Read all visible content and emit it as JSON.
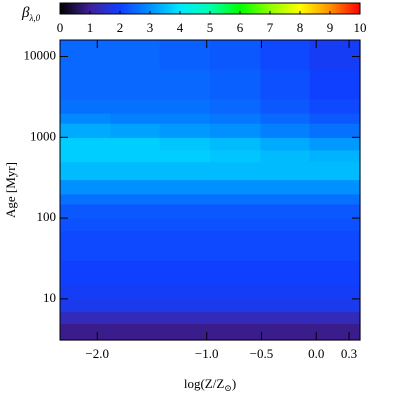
{
  "chart_data": {
    "type": "heatmap",
    "colorbar_label": "β",
    "colorbar_label_subscript": "λ,0",
    "y_label": "Age [Myr]",
    "x_label": "log(Z/Z",
    "x_label_subscript": "⊙",
    "x_label_end": ")",
    "colorbar_lim": [
      0,
      10
    ],
    "colorbar_ticks": [
      0,
      1,
      2,
      3,
      4,
      5,
      6,
      7,
      8,
      9,
      10
    ],
    "colormap": [
      [
        0,
        "#000000"
      ],
      [
        1,
        "#40209a"
      ],
      [
        2,
        "#1040ff"
      ],
      [
        3,
        "#0090ff"
      ],
      [
        4,
        "#00e8ff"
      ],
      [
        5,
        "#00ffb0"
      ],
      [
        6,
        "#00ff00"
      ],
      [
        7,
        "#90ff00"
      ],
      [
        8,
        "#ffff00"
      ],
      [
        9,
        "#ff9000"
      ],
      [
        10,
        "#ff0000"
      ]
    ],
    "xlim": [
      -2.34,
      0.4
    ],
    "ylim": [
      3.1,
      16000
    ],
    "y_log": true,
    "xticks": [
      {
        "value": -2.0,
        "label": "−2.0"
      },
      {
        "value": -1.0,
        "label": "−1.0"
      },
      {
        "value": -0.5,
        "label": "−0.5"
      },
      {
        "value": 0.0,
        "label": "0.0"
      },
      0.3
    ],
    "yticks": [
      10,
      100,
      1000,
      10000
    ],
    "x_bins": [
      -2.34,
      -1.88,
      -1.43,
      -0.97,
      -0.51,
      -0.06,
      0.4
    ],
    "y_bins": [
      3.1,
      5,
      7,
      10,
      15,
      20,
      30,
      50,
      70,
      100,
      150,
      200,
      300,
      500,
      700,
      1000,
      1500,
      2000,
      3000,
      5000,
      7000,
      10000,
      16000
    ],
    "values": [
      [
        0.9,
        0.9,
        0.9,
        0.9,
        0.9,
        0.9
      ],
      [
        1.3,
        1.3,
        1.3,
        1.3,
        1.3,
        1.3
      ],
      [
        1.8,
        1.8,
        1.8,
        1.8,
        1.8,
        1.8
      ],
      [
        1.9,
        1.9,
        1.9,
        1.9,
        1.9,
        1.9
      ],
      [
        2.0,
        2.0,
        2.0,
        2.0,
        2.0,
        2.0
      ],
      [
        2.0,
        2.0,
        2.0,
        2.0,
        2.0,
        2.0
      ],
      [
        2.1,
        2.1,
        2.1,
        2.1,
        2.1,
        2.1
      ],
      [
        2.1,
        2.1,
        2.1,
        2.1,
        2.1,
        2.1
      ],
      [
        2.2,
        2.2,
        2.2,
        2.2,
        2.2,
        2.2
      ],
      [
        2.3,
        2.3,
        2.3,
        2.3,
        2.3,
        2.3
      ],
      [
        2.6,
        2.6,
        2.6,
        2.6,
        2.6,
        2.6
      ],
      [
        3.0,
        3.0,
        3.0,
        3.0,
        3.0,
        3.0
      ],
      [
        3.5,
        3.5,
        3.5,
        3.5,
        3.5,
        3.5
      ],
      [
        3.7,
        3.7,
        3.7,
        3.6,
        3.5,
        3.4
      ],
      [
        3.7,
        3.7,
        3.6,
        3.5,
        3.3,
        3.1
      ],
      [
        3.3,
        3.2,
        3.1,
        3.0,
        2.8,
        2.6
      ],
      [
        2.9,
        2.8,
        2.8,
        2.7,
        2.5,
        2.3
      ],
      [
        2.6,
        2.6,
        2.6,
        2.5,
        2.3,
        2.1
      ],
      [
        2.5,
        2.5,
        2.5,
        2.4,
        2.2,
        2.0
      ],
      [
        2.5,
        2.5,
        2.5,
        2.4,
        2.2,
        2.0
      ],
      [
        2.5,
        2.5,
        2.4,
        2.3,
        2.1,
        1.9
      ],
      [
        2.5,
        2.5,
        2.4,
        2.3,
        2.1,
        1.9
      ]
    ]
  }
}
